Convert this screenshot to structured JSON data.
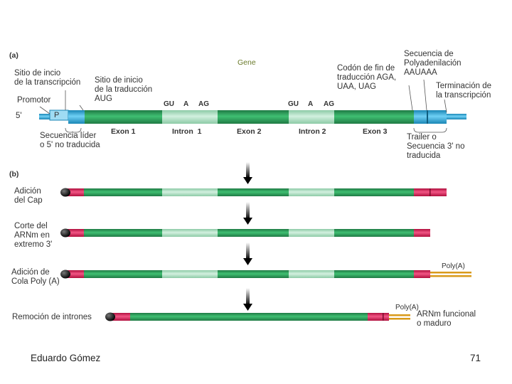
{
  "part_a": {
    "panel_label": "(a)",
    "gene_label": "Gene",
    "transcription_start": "Sitio de incio\nde la transcripción",
    "translation_start": "Sitio de inicio\nde la traducción\nAUG",
    "promoter": "Promotor",
    "promoter_box": "P",
    "five_prime": "5'",
    "leader": "Secuencia líder\no 5' no traducida",
    "stop_codon": "Codón de fin de\ntraducción AGA,\nUAA, UAG",
    "polyadenylation": "Secuencia de\nPolyadenilación\nAAUAAA",
    "termination": "Terminación de\nla transcripción",
    "trailer": "Trailer o\nSecuencia 3' no\ntraducida",
    "splice_sites_1": [
      "GU",
      "A",
      "AG"
    ],
    "splice_sites_2": [
      "GU",
      "A",
      "AG"
    ],
    "segments": [
      "Exon 1",
      "Intron  1",
      "Exon 2",
      "Intron 2",
      "Exon 3"
    ]
  },
  "part_b": {
    "panel_label": "(b)",
    "step1": "Adición\ndel Cap",
    "step2": "Corte del\nARNm en\nextremo 3'",
    "step3": "Adición de\nCola Poly (A)",
    "step3_tail": "Poly(A)",
    "step4": "Remoción de intrones",
    "step4_tail": "Poly(A)",
    "mature": "ARNm funcional\no maduro"
  },
  "footer": {
    "author": "Eduardo Gómez",
    "page": "71"
  },
  "colors": {
    "exon": "#2e9e5a",
    "intron": "#a8dcc0",
    "utr": "#e0245e",
    "flank_blue": "#2aa6d8",
    "cap": "#111111",
    "polya": "#d99a1a"
  }
}
